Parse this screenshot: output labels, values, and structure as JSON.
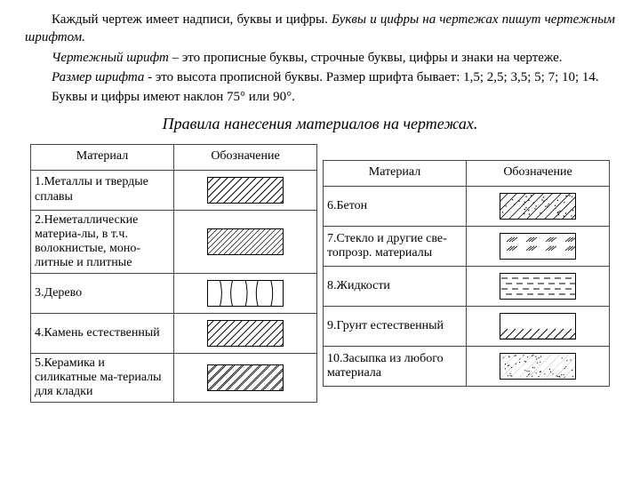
{
  "text": {
    "p1a": "Каждый чертеж имеет надписи, буквы и цифры. ",
    "p1b": "Буквы и цифры на чертежах пишут чертежным шрифтом.",
    "p2a": "Чертежный шрифт",
    "p2b": " – это прописные буквы, строчные буквы, цифры и знаки на чертеже.",
    "p3a": "Размер шрифта",
    "p3b": " - это высота прописной буквы. Размер шрифта бывает: 1,5; 2,5; 3,5; 5; 7; 10; 14.",
    "p4": "Буквы и цифры имеют наклон 75° или 90°.",
    "heading": "Правила нанесения материалов на чертежах."
  },
  "table": {
    "h1": "Материал",
    "h2": "Обозначение",
    "left": [
      {
        "label": "1.Металлы и твердые сплавы",
        "pattern": "diag45"
      },
      {
        "label": "2.Неметаллические материа-лы, в т.ч. волокнистые, моно-литные и плитные",
        "pattern": "cross"
      },
      {
        "label": "3.Дерево",
        "pattern": "wood"
      },
      {
        "label": "4.Камень естественный",
        "pattern": "diag135"
      },
      {
        "label": "5.Керамика и силикатные ма-териалы для кладки",
        "pattern": "double45"
      }
    ],
    "right": [
      {
        "label": "6.Бетон",
        "pattern": "concrete"
      },
      {
        "label": "7.Стекло и другие све-топрозр. материалы",
        "pattern": "glass"
      },
      {
        "label": "8.Жидкости",
        "pattern": "liquid"
      },
      {
        "label": "9.Грунт естественный",
        "pattern": "soil"
      },
      {
        "label": "10.Засыпка из любого материала",
        "pattern": "fill"
      }
    ]
  },
  "swatch": {
    "width": 86,
    "height": 30,
    "border": "#000",
    "stroke": "#000"
  }
}
